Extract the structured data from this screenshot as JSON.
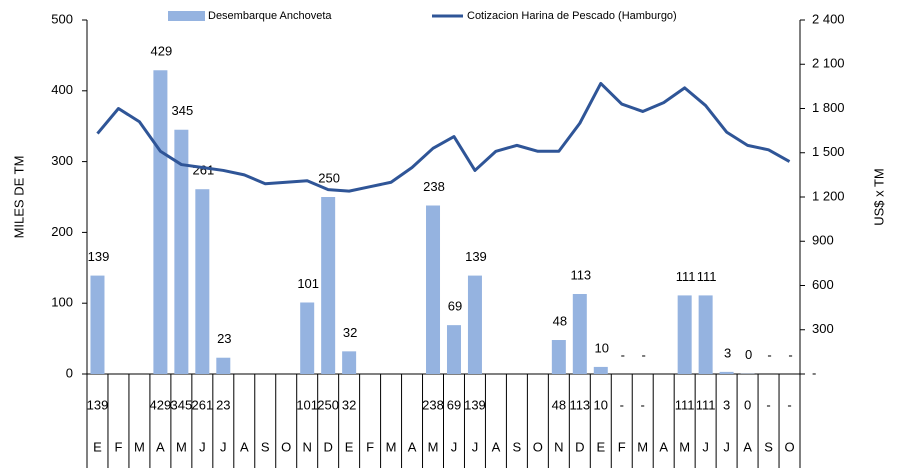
{
  "chart_data": {
    "type": "combo",
    "y_label": "MILES DE TM",
    "y2_label": "US$ x TM",
    "categories": [
      "E",
      "F",
      "M",
      "A",
      "M",
      "J",
      "J",
      "A",
      "S",
      "O",
      "N",
      "D",
      "E",
      "F",
      "M",
      "A",
      "M",
      "J",
      "J",
      "A",
      "S",
      "O",
      "N",
      "D",
      "E",
      "F",
      "M",
      "A",
      "M",
      "J",
      "J",
      "A",
      "S",
      "O"
    ],
    "series": [
      {
        "name": "Desembarque Anchoveta",
        "type": "bar",
        "color": "#95b3e0",
        "values": [
          139,
          null,
          null,
          429,
          345,
          261,
          23,
          null,
          null,
          null,
          101,
          250,
          32,
          null,
          null,
          null,
          238,
          69,
          139,
          null,
          null,
          null,
          48,
          113,
          10,
          0,
          0,
          null,
          111,
          111,
          3,
          0.4,
          0,
          0
        ],
        "value_labels": [
          "139",
          null,
          null,
          "429",
          "345",
          "261",
          "23",
          null,
          null,
          null,
          "101",
          "250",
          "32",
          null,
          null,
          null,
          "238",
          "69",
          "139",
          null,
          null,
          null,
          "48",
          "113",
          "10",
          "-",
          "-",
          null,
          "111",
          "111",
          "3",
          "0",
          "-",
          "-"
        ]
      },
      {
        "name": "Cotizacion Harina de Pescado (Hamburgo)",
        "type": "line",
        "axis": "y2",
        "color": "#2f5597",
        "values": [
          1630,
          1800,
          1710,
          1510,
          1420,
          1400,
          1380,
          1350,
          1290,
          1300,
          1310,
          1250,
          1240,
          1270,
          1300,
          1400,
          1530,
          1610,
          1380,
          1510,
          1550,
          1510,
          1510,
          1700,
          1970,
          1830,
          1780,
          1840,
          1940,
          1820,
          1640,
          1550,
          1520,
          1440
        ]
      }
    ],
    "ylim": [
      0,
      500
    ],
    "yticks": [
      0,
      100,
      200,
      300,
      400,
      500
    ],
    "y2lim": [
      0,
      2400
    ],
    "y2ticks": [
      {
        "value": 0,
        "label": "-"
      },
      300,
      600,
      900,
      {
        "value": 1200,
        "label": "1 200"
      },
      {
        "value": 1500,
        "label": "1 500"
      },
      {
        "value": 1800,
        "label": "1 800"
      },
      {
        "value": 2100,
        "label": "2 100"
      },
      {
        "value": 2400,
        "label": "2 400"
      }
    ],
    "legend": "top"
  }
}
